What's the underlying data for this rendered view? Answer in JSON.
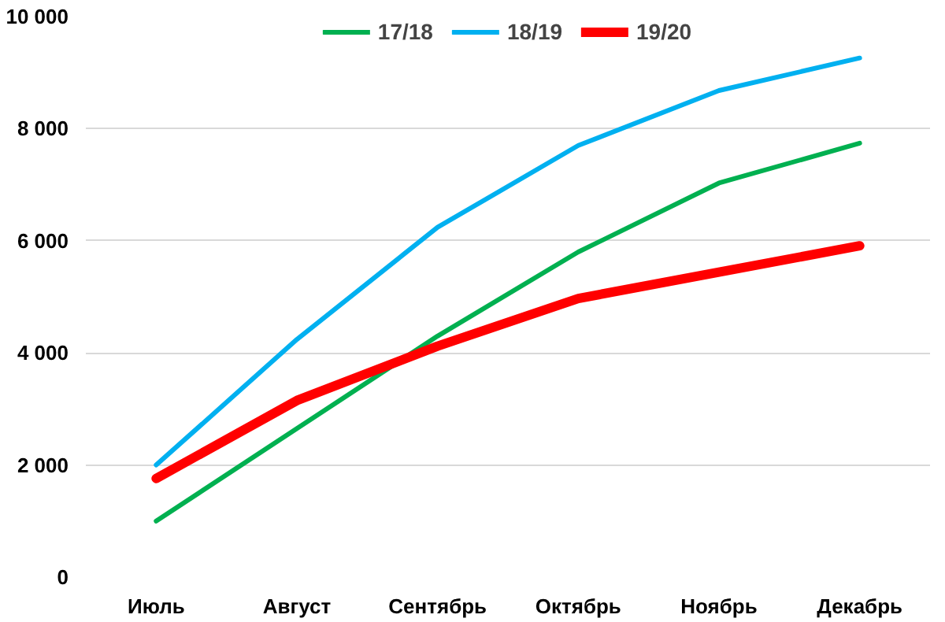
{
  "chart_data": {
    "type": "line",
    "categories": [
      "Июль",
      "Август",
      "Сентябрь",
      "Октябрь",
      "Ноябрь",
      "Декабрь"
    ],
    "series": [
      {
        "name": "17/18",
        "color": "#00b050",
        "values": [
          1000,
          2650,
          4300,
          5800,
          7030,
          7740
        ]
      },
      {
        "name": "18/19",
        "color": "#00b0f0",
        "values": [
          2000,
          4240,
          6240,
          7700,
          8680,
          9260
        ]
      },
      {
        "name": "19/20",
        "color": "#ff0000",
        "values": [
          1760,
          3150,
          4120,
          4970,
          5440,
          5910
        ]
      }
    ],
    "ylim": [
      0,
      10000
    ],
    "yticks": [
      {
        "value": 0,
        "label": "0"
      },
      {
        "value": 2000,
        "label": "2 000"
      },
      {
        "value": 4000,
        "label": "4 000"
      },
      {
        "value": 6000,
        "label": "6 000"
      },
      {
        "value": 8000,
        "label": "8 000"
      },
      {
        "value": 10000,
        "label": "10 000"
      }
    ],
    "grid": "y",
    "legend": "top",
    "marker": "none",
    "line_style": "solid"
  }
}
